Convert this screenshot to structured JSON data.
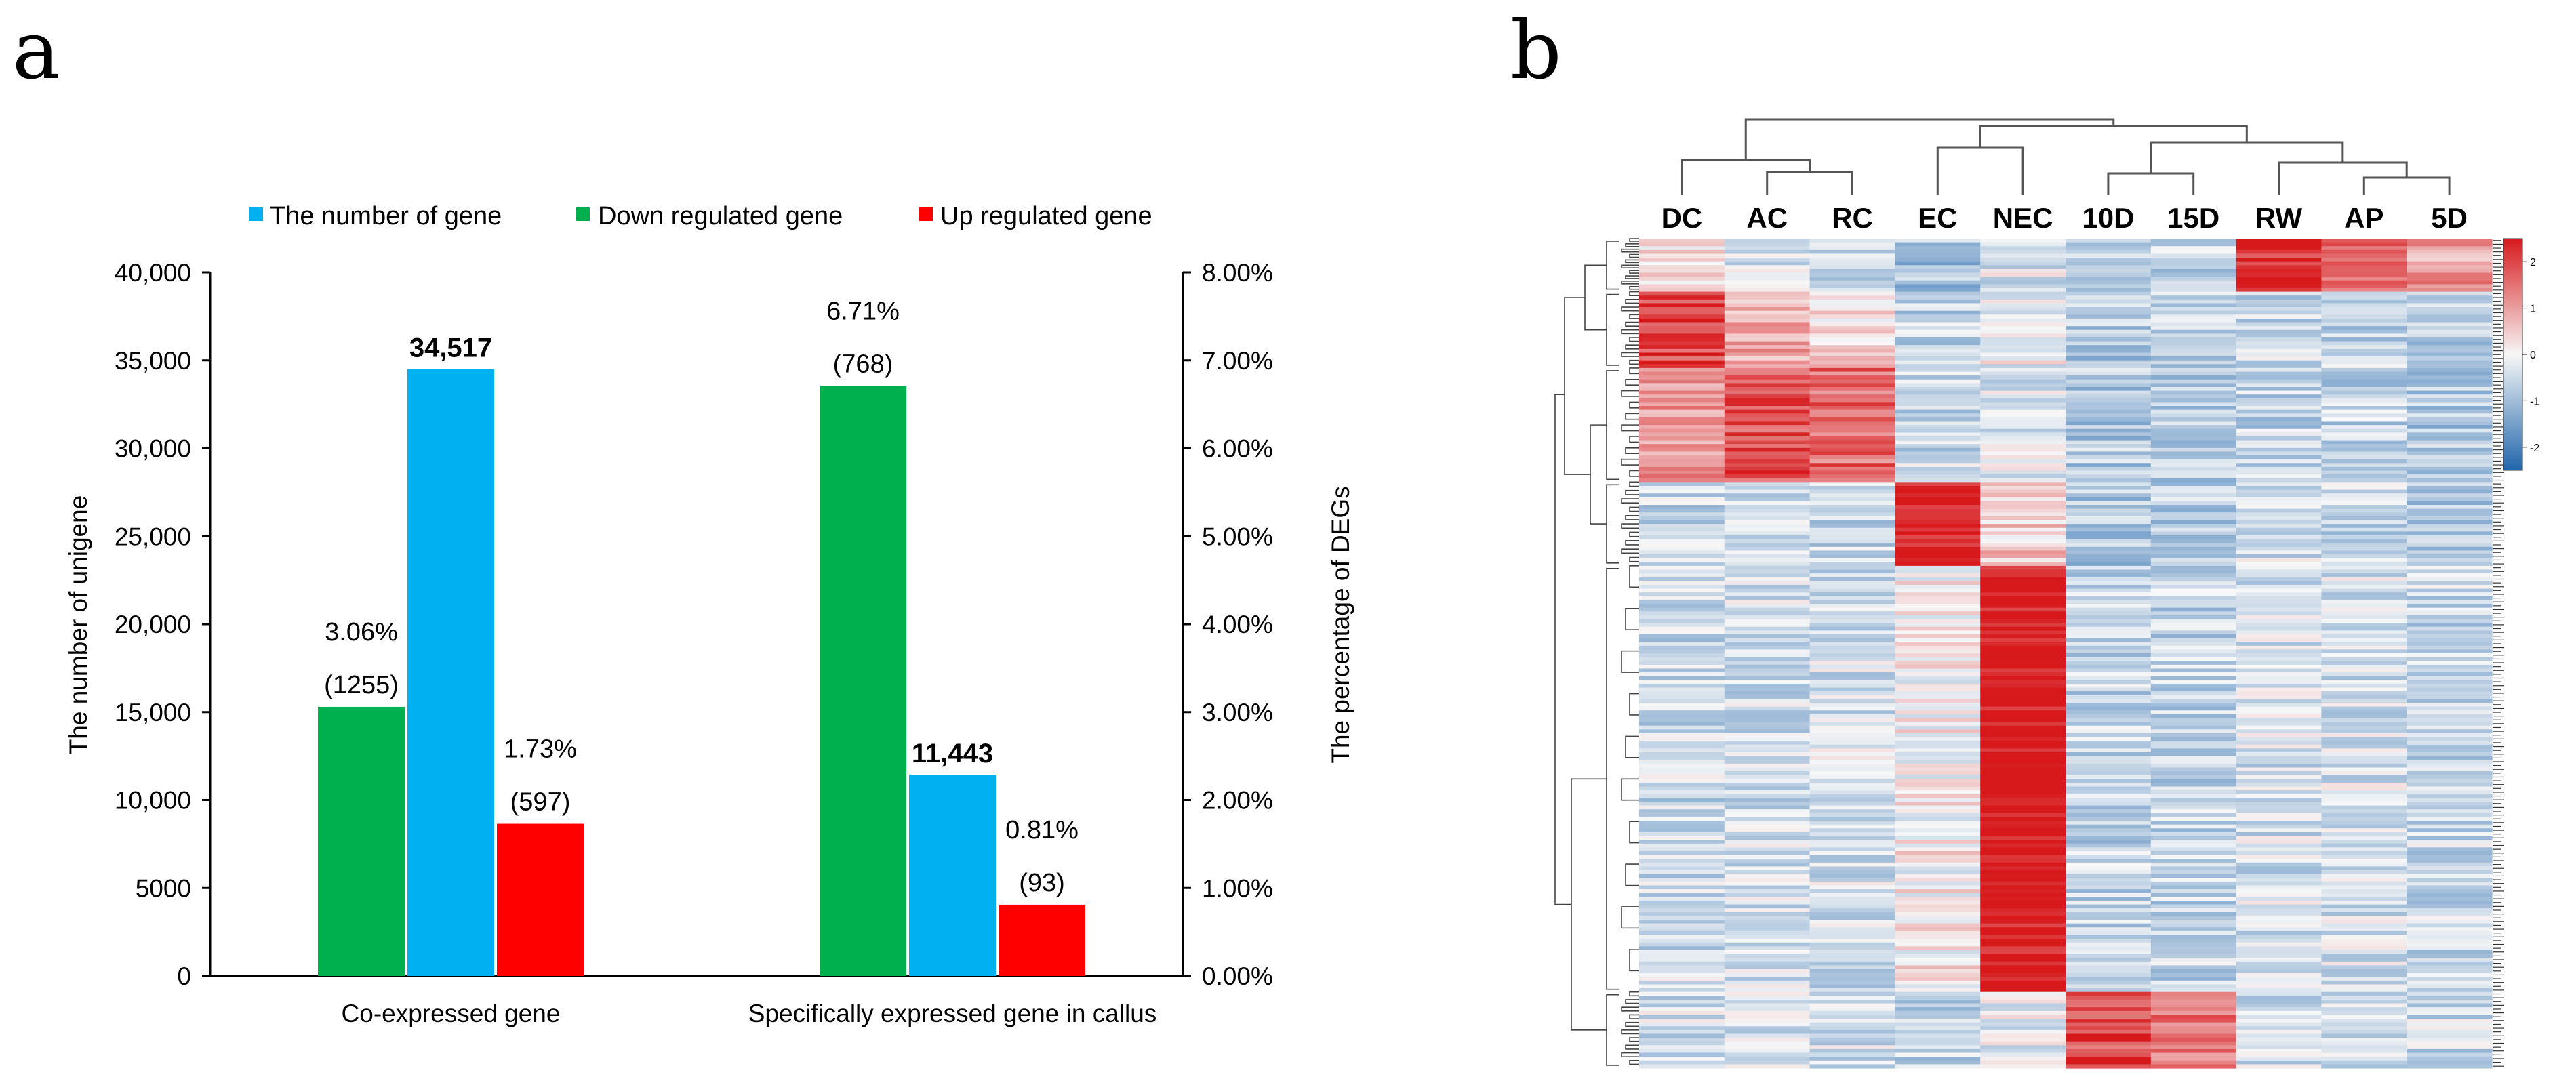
{
  "panel_a_label": "a",
  "panel_b_label": "b",
  "chart_data": [
    {
      "type": "bar",
      "panel": "a",
      "title": "",
      "categories": [
        "Co-expressed gene",
        "Specifically expressed gene in callus"
      ],
      "ylabel": "The number of unigene",
      "y2label": "The percentage of DEGs",
      "ylim": [
        0,
        40000
      ],
      "y2lim": [
        0,
        8
      ],
      "yticks": [
        "0",
        "5000",
        "10,000",
        "15,000",
        "20,000",
        "25,000",
        "30,000",
        "35,000",
        "40,000"
      ],
      "y2ticks": [
        "0.00%",
        "1.00%",
        "2.00%",
        "3.00%",
        "4.00%",
        "5.00%",
        "6.00%",
        "7.00%",
        "8.00%"
      ],
      "legend_position": "top",
      "series": [
        {
          "name": "Down regulated gene",
          "color": "#00b04f",
          "axis": "right",
          "values": [
            3.06,
            6.71
          ],
          "percent_labels": [
            "3.06%",
            "6.71%"
          ],
          "count_labels": [
            "(1255)",
            "(768)"
          ]
        },
        {
          "name": "The number of gene",
          "color": "#00b0f0",
          "axis": "left",
          "values": [
            34517,
            11443
          ],
          "labels": [
            "34,517",
            "11,443"
          ]
        },
        {
          "name": "Up regulated gene",
          "color": "#ff0000",
          "axis": "right",
          "values": [
            1.73,
            0.81
          ],
          "percent_labels": [
            "1.73%",
            "0.81%"
          ],
          "count_labels": [
            "(597)",
            "(93)"
          ]
        }
      ]
    },
    {
      "type": "heatmap",
      "panel": "b",
      "columns": [
        "DC",
        "AC",
        "RC",
        "EC",
        "NEC",
        "10D",
        "15D",
        "RW",
        "AP",
        "5D"
      ],
      "column_dendrogram_order": [
        "DC",
        "AC",
        "RC",
        "EC",
        "NEC",
        "10D",
        "15D",
        "RW",
        "AP",
        "5D"
      ],
      "colorbar_ticks": [
        "2",
        "1",
        "0",
        "-1",
        "-2"
      ],
      "colorbar_range": [
        -2.5,
        2.5
      ],
      "low_color": "#2166ac",
      "mid_color": "#f7f7f7",
      "high_color": "#d7191c",
      "row_blocks": [
        {
          "rows": 14,
          "values": [
            0.3,
            -0.4,
            -0.5,
            -0.9,
            -0.3,
            -0.7,
            -0.6,
            2.2,
            1.5,
            1.0
          ],
          "hot_columns": [
            "RW",
            "AP",
            "5D"
          ]
        },
        {
          "rows": 20,
          "values": [
            2.0,
            0.8,
            0.4,
            -0.6,
            -0.1,
            -0.8,
            -0.7,
            -0.5,
            -0.6,
            -0.8
          ],
          "hot_columns": [
            "DC"
          ]
        },
        {
          "rows": 30,
          "values": [
            1.0,
            1.9,
            1.6,
            -0.5,
            -0.3,
            -0.8,
            -0.8,
            -0.6,
            -0.6,
            -0.8
          ],
          "hot_columns": [
            "AC",
            "RC"
          ]
        },
        {
          "rows": 22,
          "values": [
            -0.5,
            -0.5,
            -0.6,
            2.6,
            0.5,
            -0.8,
            -0.7,
            -0.4,
            -0.5,
            -0.7
          ],
          "hot_columns": [
            "EC"
          ]
        },
        {
          "rows": 112,
          "values": [
            -0.5,
            -0.4,
            -0.4,
            0.1,
            2.6,
            -0.6,
            -0.6,
            -0.4,
            -0.4,
            -0.5
          ],
          "hot_columns": [
            "NEC"
          ]
        },
        {
          "rows": 20,
          "values": [
            -0.4,
            -0.3,
            -0.4,
            -0.6,
            -0.2,
            2.0,
            1.5,
            -0.5,
            -0.4,
            -0.5
          ],
          "hot_columns": [
            "10D",
            "15D"
          ]
        }
      ]
    }
  ]
}
